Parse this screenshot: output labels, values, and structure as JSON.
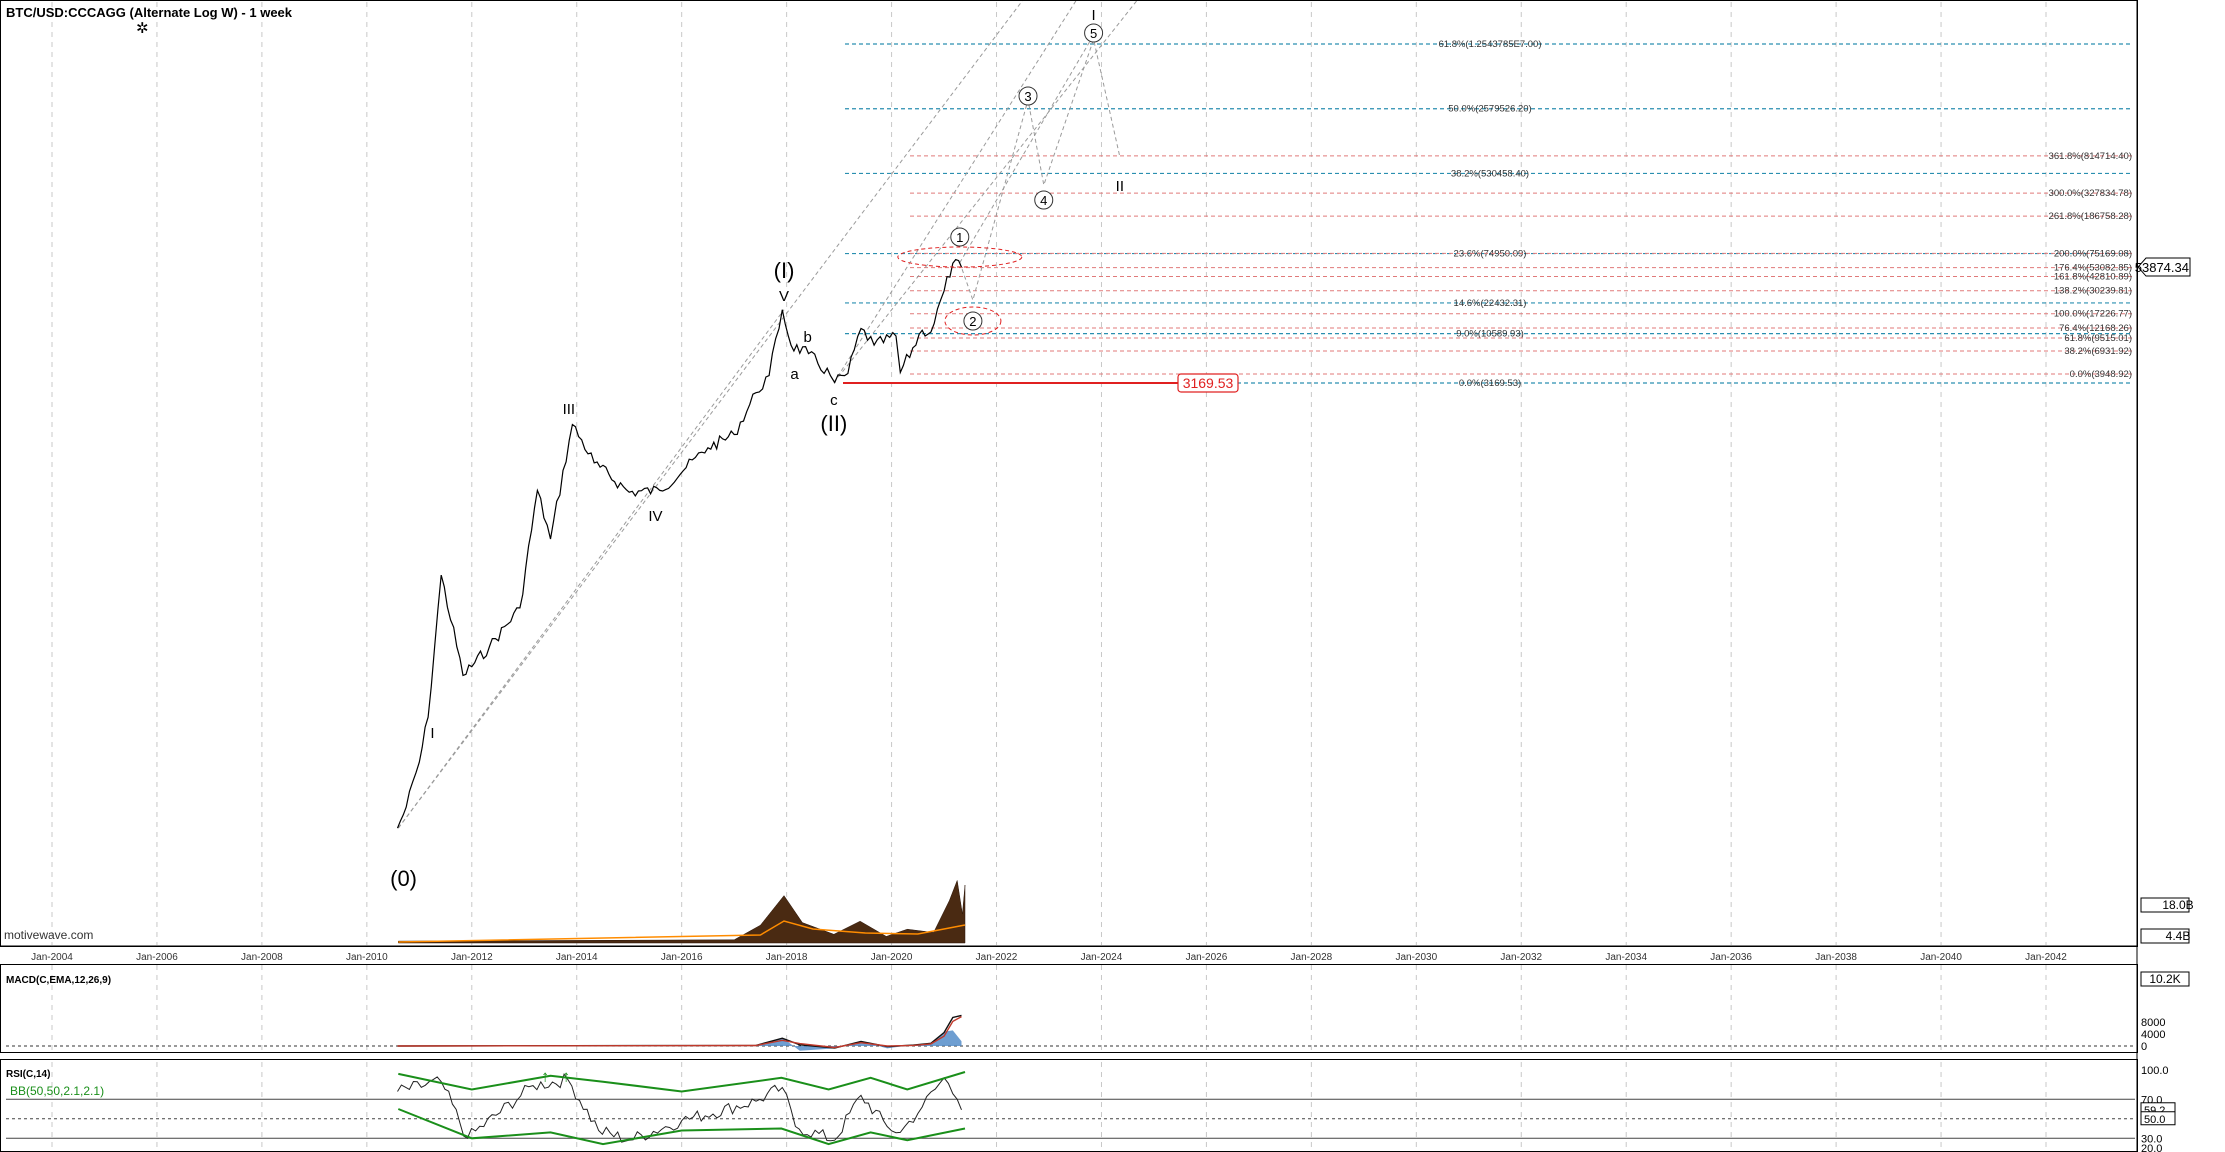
{
  "colors": {
    "fib_blue": "#2a8fb0",
    "fib_red": "#e07a7a",
    "support_red": "#e02020",
    "price_black": "#000000",
    "volume_orange": "#ff8c00",
    "macd_blue": "#4a86c5",
    "rsi_green": "#1a8f1a",
    "grid": "#c8c8c8"
  },
  "chart_data": [
    {
      "type": "line",
      "title": "BTC/USD:CCCAGG (Alternate Log W) - 1 week",
      "y_scale": "log",
      "watermark": "motivewave.com",
      "settings_icon": "gear-icon",
      "x_ticks": [
        "Jan-2004",
        "Jan-2006",
        "Jan-2008",
        "Jan-2010",
        "Jan-2012",
        "Jan-2014",
        "Jan-2016",
        "Jan-2018",
        "Jan-2020",
        "Jan-2022",
        "Jan-2024",
        "Jan-2026",
        "Jan-2028",
        "Jan-2030",
        "Jan-2032",
        "Jan-2034",
        "Jan-2036",
        "Jan-2038",
        "Jan-2040",
        "Jan-2042"
      ],
      "series": [
        {
          "x": [
            "2010-08",
            "2010-10",
            "2011-01",
            "2011-03",
            "2011-06",
            "2011-11",
            "2012-05",
            "2012-12",
            "2013-04",
            "2013-07",
            "2013-12",
            "2014-05",
            "2015-01",
            "2015-08",
            "2016-02",
            "2016-07",
            "2017-01",
            "2017-06",
            "2017-09",
            "2017-12",
            "2018-02",
            "2018-06",
            "2018-11",
            "2018-12",
            "2019-03",
            "2019-06",
            "2019-09",
            "2020-02",
            "2020-03",
            "2020-08",
            "2020-10",
            "2021-01",
            "2021-03",
            "2021-05"
          ],
          "y": [
            0.06,
            0.1,
            0.3,
            0.9,
            29,
            2.5,
            5,
            13,
            230,
            70,
            1150,
            450,
            220,
            230,
            400,
            650,
            900,
            2500,
            3800,
            19000,
            8000,
            6500,
            3800,
            3200,
            4000,
            12000,
            8000,
            10000,
            4100,
            11500,
            11000,
            30000,
            59000,
            53874
          ]
        }
      ],
      "current_price": "53874.34",
      "support_level": {
        "value": 3169.53,
        "label": "3169.53"
      },
      "volume_axis_labels": [
        "18.0B",
        "4.4B"
      ],
      "wave_labels": {
        "0": "(0)",
        "w1": "I",
        "w3": "III",
        "w4": "IV",
        "w5": "V",
        "cI": "(I)",
        "wa": "a",
        "wb": "b",
        "wc": "c",
        "cII": "(II)",
        "c1": "1",
        "c2": "2",
        "c3": "3",
        "c4": "4",
        "c5": "5",
        "pI": "I",
        "pII": "II"
      },
      "fib_blue_levels": [
        {
          "value": 12543785,
          "label": "61.8%(1.2543785E7.00)"
        },
        {
          "value": 2579526.2,
          "label": "50.0%(2579526.20)"
        },
        {
          "value": 530458.4,
          "label": "38.2%(530458.40)"
        },
        {
          "value": 74950.09,
          "label": "23.6%(74950.09)"
        },
        {
          "value": 22432.31,
          "label": "14.6%(22432.31)"
        },
        {
          "value": 10589.93,
          "label": "9.0%(10589.93)"
        },
        {
          "value": 3169.53,
          "label": "0.0%(3169.53)"
        }
      ],
      "fib_red_levels": [
        {
          "value": 814714.4,
          "label": "361.8%(814714.40)"
        },
        {
          "value": 327834.78,
          "label": "300.0%(327834.78)"
        },
        {
          "value": 186758.28,
          "label": "261.8%(186758.28)"
        },
        {
          "value": 75169.08,
          "label": "200.0%(75169.08)"
        },
        {
          "value": 53082.85,
          "label": "176.4%(53082.85)"
        },
        {
          "value": 42810.89,
          "label": "161.8%(42810.89)"
        },
        {
          "value": 30239.81,
          "label": "138.2%(30239.81)"
        },
        {
          "value": 17226.77,
          "label": "100.0%(17226.77)"
        },
        {
          "value": 12168.26,
          "label": "76.4%(12168.26)"
        },
        {
          "value": 9515.01,
          "label": "61.8%(9515.01)"
        },
        {
          "value": 6931.92,
          "label": "38.2%(6931.92)"
        },
        {
          "value": 3948.92,
          "label": "0.0%(3948.92)"
        }
      ]
    },
    {
      "type": "line",
      "title": "MACD(C,EMA,12,26,9)",
      "y_ticks": [
        "8000",
        "4000",
        "0"
      ],
      "current_value": "10.2K",
      "x": [
        "2010-08",
        "2017-06",
        "2017-12",
        "2018-04",
        "2018-12",
        "2019-06",
        "2019-12",
        "2020-06",
        "2020-10",
        "2021-01",
        "2021-03",
        "2021-05"
      ],
      "series": [
        {
          "name": "MACD",
          "values": [
            0,
            200,
            2600,
            400,
            -700,
            1500,
            -200,
            300,
            900,
            4500,
            9500,
            10200
          ]
        },
        {
          "name": "Signal",
          "values": [
            0,
            150,
            1900,
            800,
            -500,
            1100,
            0,
            200,
            700,
            3300,
            8200,
            9800
          ]
        }
      ]
    },
    {
      "type": "line",
      "title": "RSI(C,14)",
      "subtitle": "BB(50,50,2.1,2.1)",
      "y_ticks": [
        "100.0",
        "70.0",
        "30.0",
        "20.0"
      ],
      "current_values": [
        "59.2",
        "50.0"
      ],
      "x": [
        "2010-08",
        "2011-06",
        "2011-12",
        "2013-03",
        "2013-11",
        "2014-06",
        "2015-01",
        "2016-01",
        "2017-06",
        "2017-12",
        "2018-03",
        "2018-12",
        "2019-06",
        "2019-12",
        "2020-03",
        "2020-08",
        "2021-01",
        "2021-04",
        "2021-05"
      ],
      "series": [
        {
          "name": "RSI",
          "values": [
            78,
            88,
            30,
            84,
            90,
            38,
            28,
            48,
            68,
            82,
            42,
            28,
            74,
            42,
            36,
            62,
            92,
            70,
            59.2
          ]
        }
      ]
    }
  ]
}
